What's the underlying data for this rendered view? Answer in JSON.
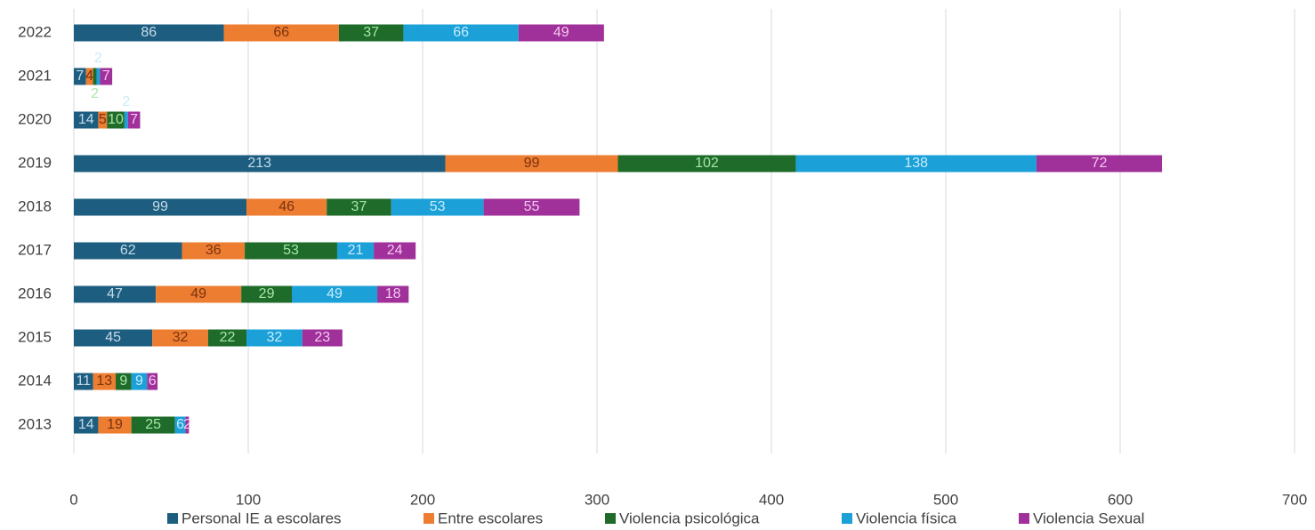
{
  "chart_data": {
    "type": "stacked_barh",
    "categories": [
      "2022",
      "2021",
      "2020",
      "2019",
      "2018",
      "2017",
      "2016",
      "2015",
      "2014",
      "2013"
    ],
    "series": [
      {
        "name": "Personal IE a escolares",
        "color": "#1d5e80",
        "label_color": "#c6dbe8",
        "values": [
          86,
          7,
          14,
          213,
          99,
          62,
          47,
          45,
          11,
          14
        ]
      },
      {
        "name": "Entre escolares",
        "color": "#ed7d31",
        "label_color": "#7a3210",
        "values": [
          66,
          4,
          5,
          99,
          46,
          36,
          49,
          32,
          13,
          19
        ]
      },
      {
        "name": "Violencia psicológica",
        "color": "#1e6b2a",
        "label_color": "#a8e6a8",
        "values": [
          37,
          2,
          10,
          102,
          37,
          53,
          29,
          22,
          9,
          25
        ]
      },
      {
        "name": "Violencia física",
        "color": "#1ba0d8",
        "label_color": "#c9ecfa",
        "values": [
          66,
          2,
          2,
          138,
          53,
          21,
          49,
          32,
          9,
          6
        ]
      },
      {
        "name": "Violencia Sexual",
        "color": "#a0309a",
        "label_color": "#f4c8f0",
        "values": [
          49,
          7,
          7,
          72,
          55,
          24,
          18,
          23,
          6,
          2
        ]
      }
    ],
    "xlim": [
      0,
      700
    ],
    "xticks": [
      0,
      100,
      200,
      300,
      400,
      500,
      600,
      700
    ],
    "grid": true,
    "legend": "bottom"
  }
}
